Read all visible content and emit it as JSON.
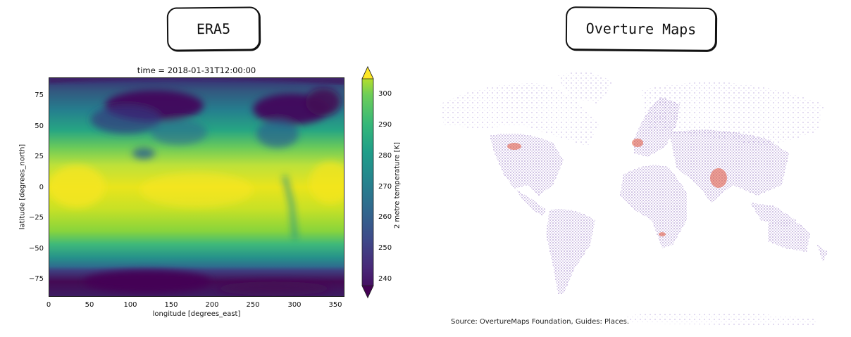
{
  "left_panel": {
    "title": "ERA5",
    "plot_title": "time = 2018-01-31T12:00:00",
    "xlabel": "longitude [degrees_east]",
    "ylabel": "latitude [degrees_north]",
    "x_ticks": [
      "0",
      "50",
      "100",
      "150",
      "200",
      "250",
      "300",
      "350"
    ],
    "y_ticks": [
      "75",
      "50",
      "25",
      "0",
      "−25",
      "−50",
      "−75"
    ],
    "colorbar": {
      "label": "2 metre temperature [K]",
      "ticks": [
        "300",
        "290",
        "280",
        "270",
        "260",
        "250",
        "240"
      ],
      "range": [
        236,
        303
      ],
      "colormap": "viridis",
      "extend": "both"
    },
    "x_range": [
      0,
      360
    ],
    "y_range": [
      -90,
      90
    ]
  },
  "right_panel": {
    "title": "Overture Maps",
    "source": "Source: OvertureMaps Foundation, Guides: Places.",
    "point_color": "#5b2a9e",
    "hotspot_color": "#e0533c"
  }
}
